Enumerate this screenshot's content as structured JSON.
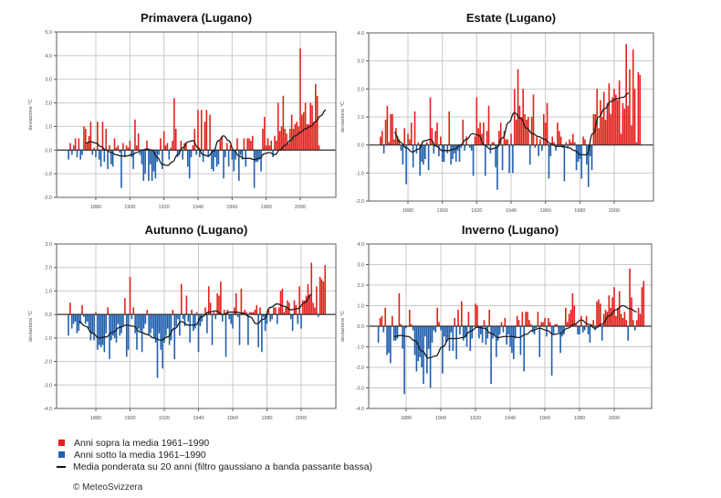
{
  "colors": {
    "above": "#e3201b",
    "below": "#1f5fae",
    "smooth": "#1a1a1a",
    "grid": "#c8c8c8",
    "axis": "#555555",
    "zero": "#333333"
  },
  "legend": {
    "above_label": "Anni sopra la media 1961–1990",
    "below_label": "Anni sotto la media 1961–1990",
    "smooth_label": "Media ponderata su 20 anni (filtro gaussiano a banda passante bassa)"
  },
  "copyright": "© MeteoSvizzera",
  "chart_data": [
    {
      "type": "bar",
      "title": "Primavera (Lugano)",
      "ylabel": "deviazione °C",
      "xlabel": "",
      "ylim": [
        -2.0,
        5.0
      ],
      "yticks": [
        "5.0",
        "4.0",
        "3.0",
        "2.0",
        "1.0",
        "0.0",
        "-1.0",
        "-2.0"
      ],
      "xticks": [
        "1880",
        "1900",
        "1920",
        "1940",
        "1960",
        "1980",
        "2000"
      ],
      "xlim": [
        1861,
        2018
      ],
      "grid": true,
      "start_year": 1864,
      "values": [
        -0.4,
        0.3,
        -0.2,
        0.2,
        0.5,
        -0.3,
        0.5,
        -0.4,
        -0.2,
        1.0,
        0.9,
        0.3,
        0.6,
        1.2,
        -0.2,
        0.1,
        -0.3,
        1.2,
        -0.4,
        -0.7,
        1.2,
        -0.5,
        0.9,
        -0.8,
        0.2,
        -0.6,
        -0.7,
        0.5,
        0.1,
        0.2,
        -0.1,
        -1.6,
        0.3,
        -0.3,
        0.2,
        0.1,
        0.4,
        -0.3,
        -0.8,
        1.3,
        0.2,
        0.7,
        -0.2,
        -0.6,
        -1.3,
        -1.0,
        0.4,
        -1.3,
        -0.6,
        -1.3,
        -0.9,
        -1.2,
        -0.5,
        -0.2,
        0.5,
        -0.8,
        0.8,
        0.2,
        0.3,
        -0.4,
        0.1,
        0.4,
        2.2,
        0.9,
        -0.3,
        -0.2,
        0.4,
        -0.4,
        0.3,
        0.3,
        -0.7,
        -1.2,
        -0.3,
        0.2,
        0.9,
        -0.2,
        1.7,
        -0.3,
        1.7,
        -0.5,
        1.2,
        1.7,
        -0.3,
        1.5,
        -0.8,
        -0.9,
        -0.3,
        -0.7,
        -0.6,
        0.4,
        0.6,
        -1.2,
        -0.3,
        0.3,
        -0.7,
        0.2,
        -0.4,
        -0.9,
        -0.4,
        0.5,
        -1.3,
        -0.2,
        -0.4,
        0.5,
        -0.7,
        0.5,
        0.5,
        0.4,
        0.6,
        -1.6,
        -0.5,
        -0.5,
        -0.4,
        -0.9,
        0.9,
        1.4,
        0.2,
        0.5,
        0.2,
        0.4,
        -0.3,
        0.6,
        0.4,
        2.0,
        0.8,
        1.0,
        2.3,
        0.9,
        0.7,
        0.3,
        0.9,
        1.5,
        0.9,
        1.1,
        1.2,
        1.0,
        4.3,
        1.5,
        1.6,
        2.0,
        1.1,
        1.1,
        2.0,
        1.9,
        1.2,
        2.8,
        2.3,
        0.2
      ],
      "smooth_start": 1874,
      "smooth": [
        0.3,
        0.35,
        0.3,
        0.15,
        0.0,
        -0.1,
        -0.2,
        -0.25,
        -0.25,
        -0.2,
        -0.1,
        0.0,
        0.05,
        0.0,
        -0.3,
        -0.6,
        -0.65,
        -0.5,
        -0.2,
        0.1,
        0.35,
        0.4,
        0.1,
        -0.2,
        -0.25,
        -0.05,
        0.4,
        0.6,
        0.4,
        0.0,
        -0.25,
        -0.35,
        -0.35,
        -0.4,
        -0.35,
        -0.15,
        -0.1,
        -0.2,
        0.0,
        0.2,
        0.4,
        0.6,
        0.75,
        0.9,
        1.0,
        1.2,
        1.45,
        1.7
      ],
      "smooth_step": 3
    },
    {
      "type": "bar",
      "title": "Estate (Lugano)",
      "ylabel": "deviazione °C",
      "xlabel": "",
      "ylim": [
        -2.0,
        4.0
      ],
      "yticks": [
        "4.0",
        "3.0",
        "2.0",
        "1.0",
        "0.0",
        "-1.0",
        "-2.0"
      ],
      "xticks": [
        "1880",
        "1900",
        "1920",
        "1940",
        "1960",
        "1980",
        "2000"
      ],
      "xlim": [
        1861,
        2018
      ],
      "grid": true,
      "start_year": 1864,
      "values": [
        0.3,
        0.5,
        -0.3,
        0.9,
        1.4,
        0.1,
        1.1,
        1.1,
        0.2,
        0.6,
        0.3,
        0.2,
        -0.2,
        -0.7,
        0.6,
        -1.4,
        0.4,
        0.2,
        0.8,
        -0.8,
        1.2,
        -0.3,
        0.1,
        -1.1,
        -0.6,
        -0.7,
        -0.5,
        0.1,
        -0.9,
        1.7,
        0.6,
        -0.3,
        0.5,
        0.8,
        -0.4,
        0.3,
        -0.6,
        -0.6,
        0.0,
        -0.3,
        1.2,
        -0.7,
        -0.5,
        -0.3,
        -0.6,
        -0.2,
        -0.6,
        -0.1,
        0.9,
        -0.2,
        0.3,
        0.0,
        -0.1,
        -0.2,
        -1.1,
        0.3,
        1.7,
        0.6,
        0.8,
        0.4,
        0.8,
        -1.1,
        0.5,
        1.4,
        -0.3,
        0.1,
        0.1,
        -0.8,
        -1.6,
        0.5,
        0.8,
        -0.9,
        0.5,
        0.2,
        0.2,
        -1.0,
        0.4,
        -1.0,
        2.0,
        0.9,
        2.7,
        1.4,
        1.0,
        2.0,
        1.1,
        0.9,
        1.0,
        -0.7,
        1.0,
        1.8,
        -0.1,
        0.3,
        -0.4,
        0.2,
        -0.2,
        1.1,
        0.8,
        1.5,
        -1.2,
        -0.4,
        0.3,
        0.1,
        -0.2,
        0.8,
        0.5,
        0.3,
        -0.1,
        -1.3,
        0.1,
        -0.1,
        0.2,
        0.1,
        0.4,
        0.1,
        -0.9,
        -0.6,
        -0.5,
        -1.2,
        0.3,
        0.2,
        -0.7,
        -1.5,
        -0.4,
        -0.9,
        1.1,
        1.1,
        2.0,
        0.6,
        1.6,
        1.0,
        1.9,
        0.9,
        1.5,
        2.2,
        1.1,
        1.7,
        2.0,
        1.8,
        1.6,
        2.3,
        0.4,
        1.5,
        1.3,
        3.6,
        1.4,
        2.7,
        0.7,
        3.4,
        2.0,
        0.1,
        2.6,
        2.5
      ],
      "smooth_start": 1872,
      "smooth": [
        0.45,
        0.1,
        -0.1,
        -0.25,
        -0.15,
        0.15,
        0.2,
        -0.05,
        -0.2,
        -0.2,
        -0.15,
        0.0,
        0.2,
        0.4,
        0.35,
        0.0,
        -0.15,
        -0.1,
        0.25,
        0.8,
        1.15,
        0.95,
        0.6,
        0.4,
        0.3,
        0.2,
        0.05,
        -0.05,
        -0.05,
        -0.1,
        -0.2,
        -0.35,
        -0.35,
        0.4,
        1.0,
        1.3,
        1.55,
        1.65,
        1.7,
        1.85
      ],
      "smooth_step": 3.5
    },
    {
      "type": "bar",
      "title": "Autunno (Lugano)",
      "ylabel": "deviazione °C",
      "xlabel": "",
      "ylim": [
        -4.0,
        3.0
      ],
      "yticks": [
        "3.0",
        "2.0",
        "1.0",
        "0.0",
        "-1.0",
        "-2.0",
        "-3.0",
        "-4.0"
      ],
      "xticks": [
        "1880",
        "1900",
        "1920",
        "1940",
        "1960",
        "1980",
        "2000"
      ],
      "xlim": [
        1861,
        2018
      ],
      "grid": true,
      "start_year": 1864,
      "values": [
        -0.9,
        0.5,
        -0.6,
        -0.4,
        -0.3,
        -0.8,
        -0.7,
        -0.4,
        0.4,
        -0.1,
        -0.4,
        -0.3,
        -0.6,
        -1.1,
        -0.8,
        -1.1,
        0.1,
        -1.5,
        -1.3,
        -1.4,
        -1.3,
        -1.6,
        -0.8,
        0.3,
        -1.9,
        -1.1,
        -0.9,
        -1.0,
        -1.2,
        -0.4,
        -0.9,
        -0.8,
        -0.5,
        0.7,
        -1.8,
        -1.5,
        1.6,
        -0.2,
        0.3,
        -0.8,
        -1.5,
        -0.6,
        -0.7,
        -1.6,
        -0.6,
        -0.4,
        0.2,
        -0.9,
        -0.8,
        -0.6,
        -1.0,
        -1.2,
        -2.7,
        -0.8,
        -1.5,
        -2.3,
        -1.2,
        -0.9,
        -0.6,
        -1.3,
        -1.1,
        0.2,
        -1.9,
        -0.5,
        -0.2,
        -0.9,
        1.3,
        -0.2,
        -0.5,
        0.8,
        -0.3,
        -1.2,
        0.2,
        -0.7,
        -0.6,
        0.1,
        -1.6,
        -0.5,
        -0.3,
        0.0,
        0.3,
        -0.8,
        1.2,
        0.5,
        -1.3,
        0.1,
        -0.2,
        0.9,
        0.8,
        1.4,
        -0.3,
        0.2,
        -1.8,
        0.2,
        -0.2,
        -0.4,
        -0.6,
        0.3,
        0.9,
        -0.1,
        -1.3,
        1.1,
        0.1,
        0.2,
        0.1,
        -1.3,
        0.1,
        0.1,
        0.1,
        0.2,
        0.4,
        -1.4,
        0.3,
        -1.6,
        -0.1,
        -0.7,
        -0.4,
        0.2,
        -0.3,
        -0.2,
        0.3,
        0.3,
        -0.4,
        0.3,
        1.0,
        1.1,
        0.1,
        0.3,
        0.6,
        0.5,
        -0.2,
        -0.7,
        0.6,
        0.4,
        -0.4,
        1.2,
        -0.6,
        0.6,
        0.6,
        0.8,
        1.3,
        0.8,
        2.2,
        0.5,
        0.3,
        1.2,
        -0.1,
        1.6,
        1.5,
        1.4,
        2.1
      ],
      "smooth_start": 1870,
      "smooth": [
        -0.3,
        -0.5,
        -0.8,
        -1.0,
        -0.95,
        -0.75,
        -0.55,
        -0.45,
        -0.5,
        -0.75,
        -0.85,
        -1.0,
        -1.1,
        -0.95,
        -0.6,
        -0.3,
        -0.45,
        -0.45,
        -0.1,
        0.1,
        0.15,
        0.0,
        0.1,
        0.1,
        0.05,
        -0.1,
        -0.4,
        -0.2,
        0.3,
        0.45,
        0.35,
        0.2,
        0.25,
        0.5,
        0.85
      ],
      "smooth_step": 4
    },
    {
      "type": "bar",
      "title": "Inverno (Lugano)",
      "ylabel": "deviazione °C",
      "xlabel": "",
      "ylim": [
        -4.0,
        4.0
      ],
      "yticks": [
        "4.0",
        "3.0",
        "2.0",
        "1.0",
        "0.0",
        "-1.0",
        "-2.0",
        "-3.0",
        "-4.0"
      ],
      "xticks": [
        "1880",
        "1900",
        "1920",
        "1940",
        "1960",
        "1980",
        "2000"
      ],
      "xlim": [
        1861,
        2018
      ],
      "grid": true,
      "start_year": 1864,
      "values": [
        -0.8,
        0.4,
        0.5,
        -0.3,
        0.9,
        -1.4,
        -1.3,
        -1.8,
        0.5,
        -0.7,
        -0.7,
        -0.6,
        1.6,
        0.1,
        -1.1,
        -3.3,
        -0.1,
        0.0,
        0.8,
        0.1,
        -0.2,
        -1.4,
        -2.2,
        -1.7,
        -1.5,
        -2.0,
        -2.8,
        -0.5,
        -2.3,
        -1.1,
        -3.0,
        -0.8,
        -0.2,
        -0.3,
        0.9,
        0.2,
        -0.2,
        -2.3,
        -0.5,
        -0.8,
        -0.6,
        -1.2,
        -0.3,
        -1.2,
        0.4,
        -1.6,
        0.8,
        -0.4,
        1.2,
        -0.7,
        -0.5,
        -1.0,
        0.7,
        -1.2,
        -0.6,
        0.0,
        1.1,
        1.0,
        -0.6,
        -0.4,
        -0.8,
        0.3,
        -0.9,
        -0.6,
        0.8,
        -2.8,
        -0.6,
        -0.4,
        -1.5,
        -0.7,
        -0.4,
        0.2,
        -0.3,
        0.4,
        -0.9,
        -0.4,
        -1.0,
        -1.3,
        -1.6,
        -0.6,
        0.5,
        0.3,
        -1.4,
        0.7,
        -2.2,
        0.7,
        0.7,
        0.3,
        0.1,
        -0.3,
        -0.4,
        -0.1,
        0.7,
        -1.5,
        0.2,
        0.2,
        0.4,
        -0.5,
        0.4,
        0.2,
        -2.4,
        -0.4,
        0.1,
        0.1,
        -0.3,
        -1.3,
        -0.5,
        -0.4,
        0.9,
        0.2,
        0.6,
        0.8,
        1.6,
        1.0,
        0.1,
        -0.4,
        -0.4,
        0.5,
        -0.3,
        -0.2,
        0.5,
        -0.4,
        -0.8,
        0.1,
        0.3,
        -0.2,
        1.2,
        1.3,
        1.1,
        -0.7,
        0.6,
        0.8,
        0.7,
        1.5,
        0.9,
        1.4,
        1.9,
        0.5,
        0.9,
        1.7,
        0.6,
        0.4,
        0.7,
        0.3,
        -0.7,
        2.8,
        1.4,
        0.3,
        -0.2,
        0.3,
        0.9,
        0.6,
        1.9,
        2.2
      ],
      "smooth_start": 1873,
      "smooth": [
        -0.5,
        -0.45,
        -0.5,
        -0.7,
        -1.2,
        -1.55,
        -1.45,
        -1.0,
        -0.6,
        -0.6,
        -0.55,
        -0.25,
        -0.05,
        -0.1,
        -0.35,
        -0.55,
        -0.5,
        -0.5,
        -0.55,
        -0.4,
        -0.2,
        -0.1,
        -0.2,
        -0.4,
        -0.35,
        -0.1,
        0.1,
        0.3,
        0.1,
        -0.1,
        0.1,
        0.5,
        0.8,
        1.0,
        0.85,
        0.7
      ],
      "smooth_step": 4
    }
  ]
}
